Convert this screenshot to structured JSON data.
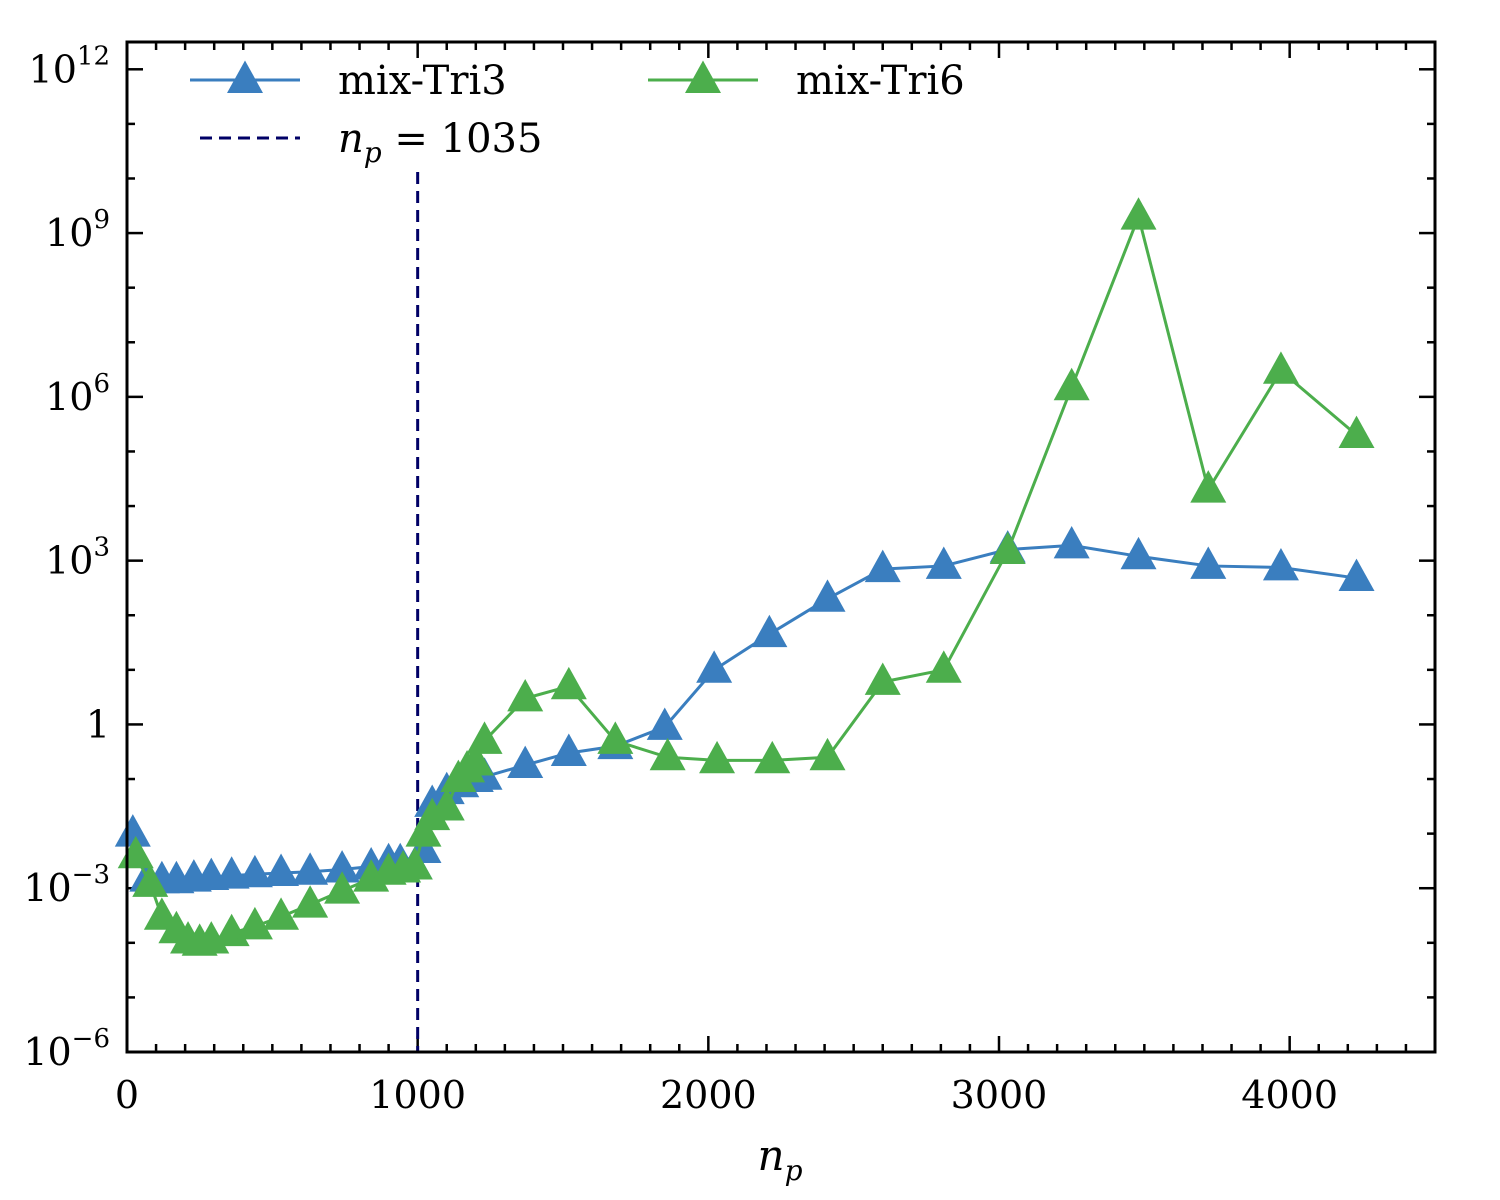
{
  "chart_data": {
    "type": "line",
    "title": "",
    "xlabel": "n",
    "xlabel_sub": "p",
    "ylabel": "",
    "xlim": [
      0,
      4500
    ],
    "ylim_log10": [
      -6,
      12.5
    ],
    "yscale": "log",
    "x_ticks": [
      0,
      1000,
      2000,
      3000,
      4000
    ],
    "x_tick_labels": [
      "0",
      "1000",
      "2000",
      "3000",
      "4000"
    ],
    "y_ticks_log10": [
      -6,
      -3,
      0,
      3,
      6,
      9,
      12
    ],
    "y_tick_labels": [
      {
        "base": "10",
        "exp": "−6"
      },
      {
        "base": "10",
        "exp": "−3"
      },
      {
        "base": "1",
        "exp": ""
      },
      {
        "base": "10",
        "exp": "3"
      },
      {
        "base": "10",
        "exp": "6"
      },
      {
        "base": "10",
        "exp": "9"
      },
      {
        "base": "10",
        "exp": "12"
      }
    ],
    "grid": false,
    "legend_position": "top",
    "vline": {
      "x": 1000,
      "label_main": "n",
      "label_sub": "p",
      "label_rest": " = 1035",
      "color": "#000066"
    },
    "series": [
      {
        "name": "mix-Tri3",
        "color": "#3a7ebf",
        "x": [
          20,
          70,
          120,
          170,
          230,
          290,
          360,
          440,
          530,
          630,
          740,
          840,
          900,
          940,
          990,
          1020,
          1050,
          1100,
          1150,
          1200,
          1230,
          1370,
          1520,
          1680,
          1850,
          2020,
          2210,
          2410,
          2600,
          2810,
          3030,
          3250,
          3480,
          3720,
          3970,
          4230
        ],
        "y": [
          0.01,
          0.0015,
          0.0014,
          0.0014,
          0.0015,
          0.0016,
          0.0017,
          0.0018,
          0.0019,
          0.002,
          0.0022,
          0.0025,
          0.003,
          0.003,
          0.0025,
          0.005,
          0.035,
          0.06,
          0.08,
          0.1,
          0.11,
          0.18,
          0.3,
          0.4,
          0.9,
          10,
          45,
          200,
          700,
          800,
          1600,
          1900,
          1200,
          800,
          750,
          480
        ]
      },
      {
        "name": "mix-Tri6",
        "color": "#4cae4c",
        "x": [
          30,
          80,
          120,
          170,
          210,
          250,
          290,
          360,
          440,
          530,
          630,
          740,
          840,
          900,
          950,
          990,
          1020,
          1050,
          1100,
          1140,
          1170,
          1200,
          1230,
          1370,
          1520,
          1680,
          1860,
          2030,
          2220,
          2410,
          2600,
          2810,
          3030,
          3250,
          3480,
          3720,
          3970,
          4230
        ],
        "y": [
          0.004,
          0.0012,
          0.0003,
          0.00017,
          0.00011,
          0.0001,
          0.00011,
          0.00015,
          0.0002,
          0.0003,
          0.0005,
          0.0009,
          0.0015,
          0.002,
          0.0022,
          0.0025,
          0.01,
          0.02,
          0.03,
          0.1,
          0.15,
          0.2,
          0.5,
          3,
          5,
          0.5,
          0.25,
          0.22,
          0.22,
          0.25,
          6,
          10,
          1500,
          1500000,
          2000000000,
          20000,
          3000000,
          200000
        ]
      }
    ]
  }
}
